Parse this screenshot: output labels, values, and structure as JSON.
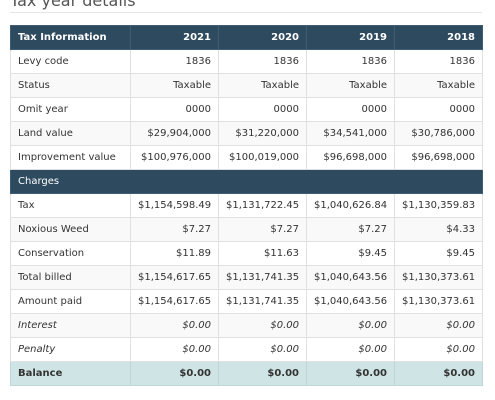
{
  "title": "Tax year details",
  "table": {
    "header": [
      "Tax Information",
      "2021",
      "2020",
      "2019",
      "2018"
    ],
    "rows": [
      [
        "Levy code",
        "1836",
        "1836",
        "1836",
        "1836"
      ],
      [
        "Status",
        "Taxable",
        "Taxable",
        "Taxable",
        "Taxable"
      ],
      [
        "Omit year",
        "0000",
        "0000",
        "0000",
        "0000"
      ],
      [
        "Land value",
        "$29,904,000",
        "$31,220,000",
        "$34,541,000",
        "$30,786,000"
      ],
      [
        "Improvement value",
        "$100,976,000",
        "$100,019,000",
        "$96,698,000",
        "$96,698,000"
      ]
    ],
    "section": "Charges",
    "charge_rows": [
      [
        "Tax",
        "$1,154,598.49",
        "$1,131,722.45",
        "$1,040,626.84",
        "$1,130,359.83"
      ],
      [
        "Noxious Weed",
        "$7.27",
        "$7.27",
        "$7.27",
        "$4.33"
      ],
      [
        "Conservation",
        "$11.89",
        "$11.63",
        "$9.45",
        "$9.45"
      ],
      [
        "Total billed",
        "$1,154,617.65",
        "$1,131,741.35",
        "$1,040,643.56",
        "$1,130,373.61"
      ],
      [
        "Amount paid",
        "$1,154,617.65",
        "$1,131,741.35",
        "$1,040,643.56",
        "$1,130,373.61"
      ],
      [
        "Interest",
        "$0.00",
        "$0.00",
        "$0.00",
        "$0.00"
      ],
      [
        "Penalty",
        "$0.00",
        "$0.00",
        "$0.00",
        "$0.00"
      ]
    ],
    "balance": [
      "Balance",
      "$0.00",
      "$0.00",
      "$0.00",
      "$0.00"
    ]
  }
}
